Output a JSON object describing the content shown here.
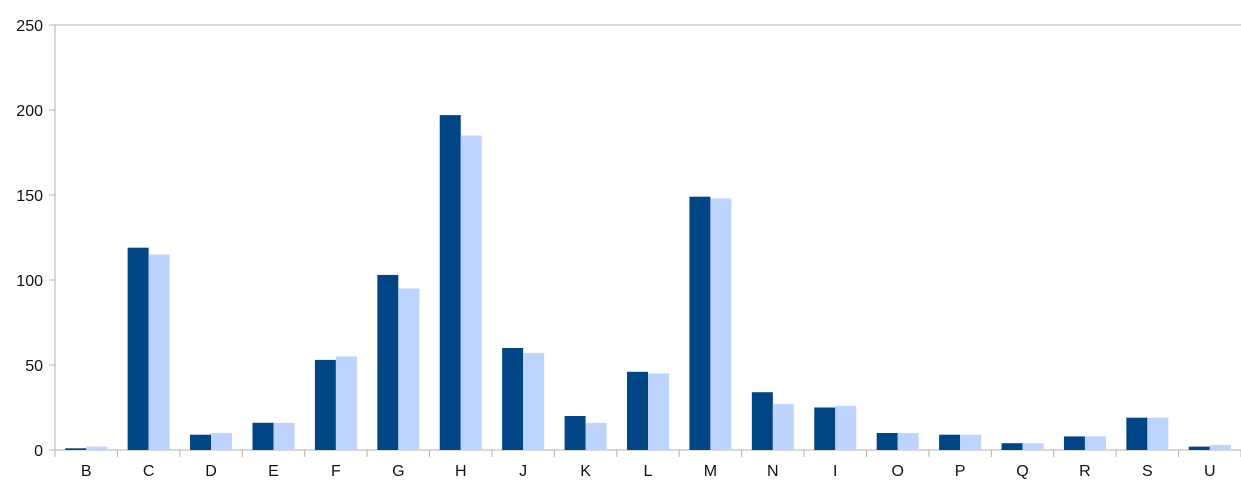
{
  "chart_data": {
    "type": "bar",
    "title": "",
    "xlabel": "",
    "ylabel": "",
    "categories": [
      "B",
      "C",
      "D",
      "E",
      "F",
      "G",
      "H",
      "J",
      "K",
      "L",
      "M",
      "N",
      "I",
      "O",
      "P",
      "Q",
      "R",
      "S",
      "U"
    ],
    "series": [
      {
        "color": "#004586",
        "values": [
          1,
          119,
          9,
          16,
          53,
          103,
          197,
          60,
          20,
          46,
          149,
          34,
          25,
          10,
          9,
          4,
          8,
          19,
          2
        ]
      },
      {
        "color": "#bcd4ff",
        "values": [
          2,
          115,
          10,
          16,
          55,
          95,
          185,
          57,
          16,
          45,
          148,
          27,
          26,
          10,
          9,
          4,
          8,
          19,
          3
        ]
      }
    ],
    "ylim": [
      0,
      250
    ],
    "yticks": [
      0,
      50,
      100,
      150,
      200,
      250
    ],
    "grid": false,
    "legend": "none"
  }
}
